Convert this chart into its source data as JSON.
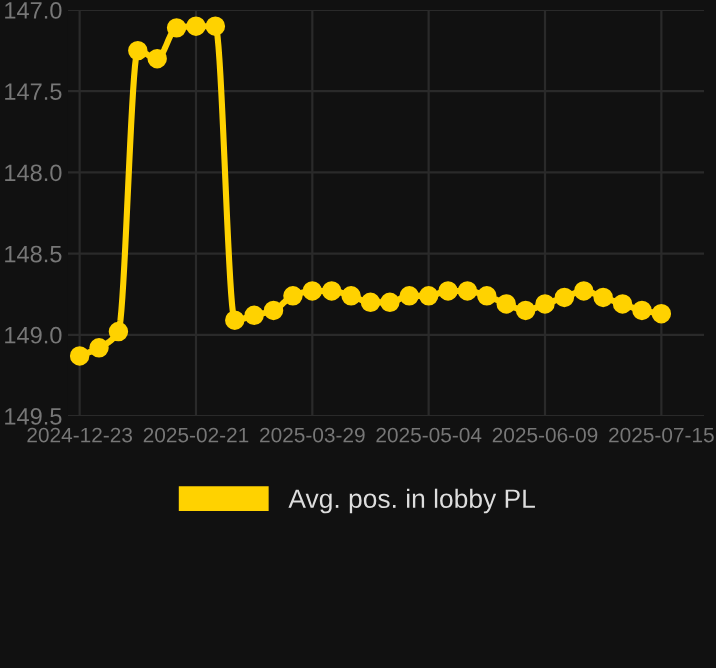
{
  "chart_data": {
    "type": "line",
    "categories": [
      "2024-12-23",
      null,
      null,
      null,
      null,
      null,
      "2025-02-21",
      null,
      null,
      null,
      null,
      null,
      "2025-03-29",
      null,
      null,
      null,
      null,
      null,
      "2025-05-04",
      null,
      null,
      null,
      null,
      null,
      "2025-06-09",
      null,
      null,
      null,
      null,
      null,
      "2025-07-15"
    ],
    "series": [
      {
        "name": "Avg. pos. in lobby PL",
        "color": "#ffd200",
        "values": [
          149.13,
          149.08,
          148.98,
          147.25,
          147.3,
          147.11,
          147.1,
          147.1,
          148.91,
          148.88,
          148.85,
          148.76,
          148.73,
          148.73,
          148.76,
          148.8,
          148.8,
          148.76,
          148.76,
          148.73,
          148.73,
          148.76,
          148.81,
          148.85,
          148.81,
          148.77,
          148.73,
          148.77,
          148.81,
          148.85,
          148.87
        ]
      }
    ],
    "ylim": [
      149.5,
      147.0
    ],
    "yticks": [
      {
        "value": 147.0,
        "label": "147.0"
      },
      {
        "value": 147.5,
        "label": "147.5"
      },
      {
        "value": 148.0,
        "label": "148.0"
      },
      {
        "value": 148.5,
        "label": "148.5"
      },
      {
        "value": 149.0,
        "label": "149.0"
      },
      {
        "value": 149.5,
        "label": "149.5"
      }
    ],
    "grid": true,
    "legend": "bottom",
    "marker": "circle",
    "line_style": "solid"
  }
}
